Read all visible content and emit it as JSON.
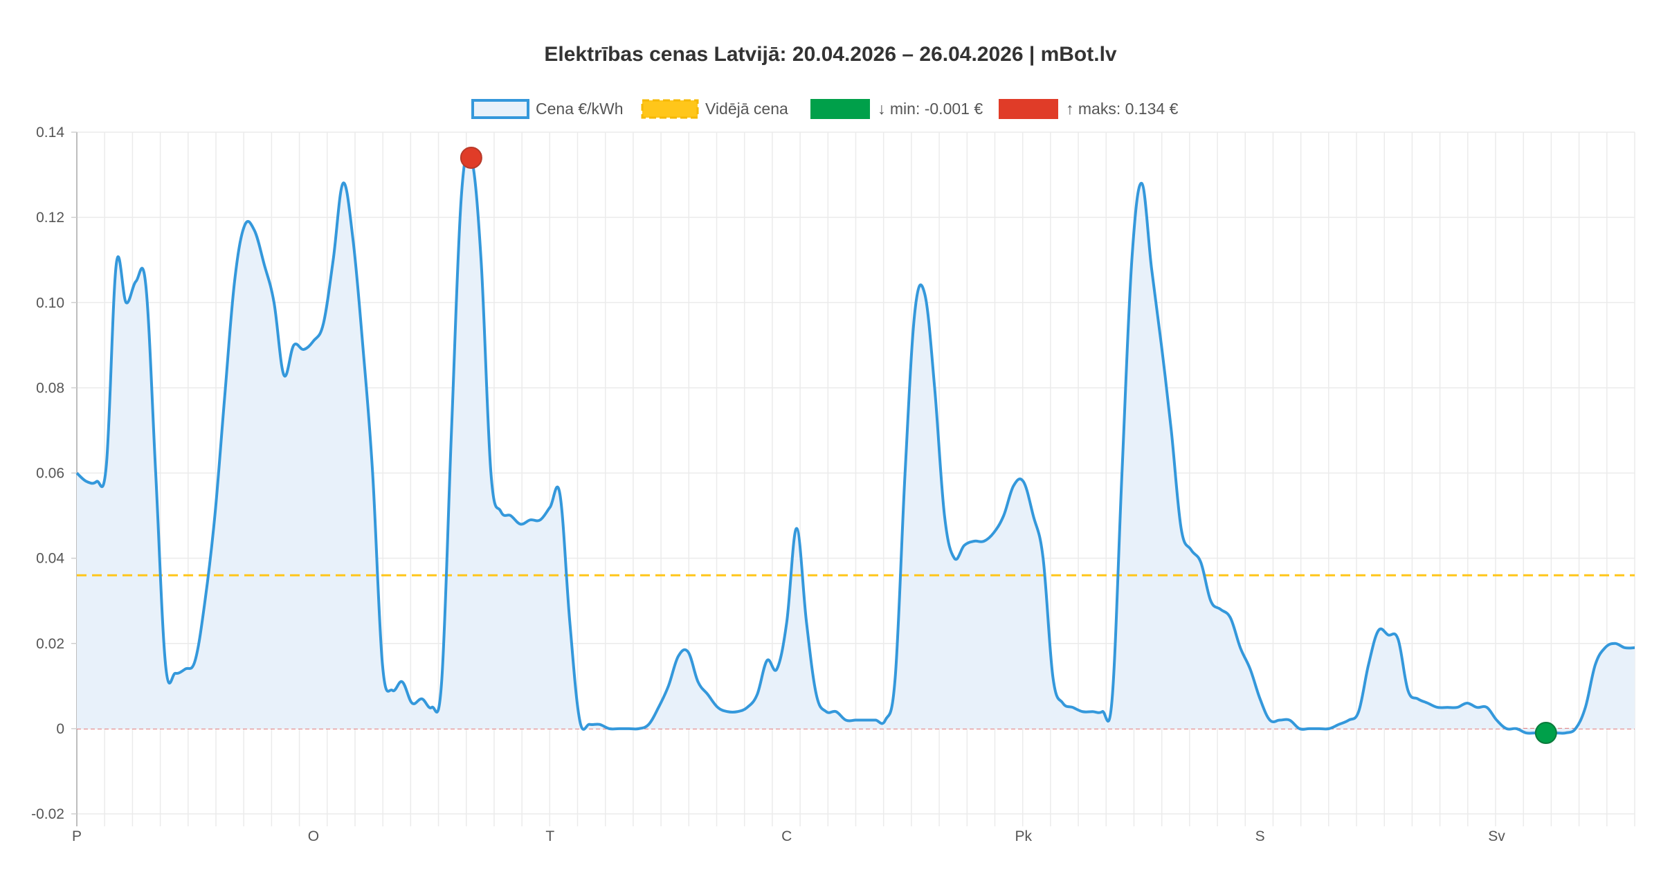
{
  "chart_data": {
    "type": "line",
    "title": "Elektrības cenas Latvijā: 20.04.2026 – 26.04.2026 | mBot.lv",
    "xlabel": "",
    "ylabel": "",
    "ylim": [
      -0.02,
      0.14
    ],
    "yticks": [
      -0.02,
      0,
      0.02,
      0.04,
      0.06,
      0.08,
      0.1,
      0.12,
      0.14
    ],
    "ytick_labels": [
      "-0.02",
      "0",
      "0.02",
      "0.04",
      "0.06",
      "0.08",
      "0.10",
      "0.12",
      "0.14"
    ],
    "x_day_labels": [
      "P",
      "O",
      "T",
      "C",
      "Pk",
      "S",
      "Sv"
    ],
    "grid": true,
    "legend_position": "top-center",
    "legend": [
      {
        "label": "Cena €/kWh",
        "kind": "series-area"
      },
      {
        "label": "Vidējā cena",
        "kind": "dashed-line"
      },
      {
        "label": "↓ min: -0.001 €",
        "kind": "min-marker"
      },
      {
        "label": "↑ maks: 0.134 €",
        "kind": "max-marker"
      }
    ],
    "series": [
      {
        "name": "Cena €/kWh",
        "color": "#3498db",
        "fill": "#e8f1fa",
        "values": [
          0.06,
          0.058,
          0.058,
          0.062,
          0.109,
          0.1,
          0.105,
          0.104,
          0.06,
          0.015,
          0.013,
          0.014,
          0.016,
          0.03,
          0.05,
          0.078,
          0.105,
          0.118,
          0.117,
          0.109,
          0.1,
          0.083,
          0.09,
          0.089,
          0.091,
          0.095,
          0.11,
          0.128,
          0.115,
          0.09,
          0.06,
          0.015,
          0.009,
          0.011,
          0.006,
          0.007,
          0.005,
          0.011,
          0.07,
          0.125,
          0.134,
          0.11,
          0.06,
          0.051,
          0.05,
          0.048,
          0.049,
          0.049,
          0.052,
          0.055,
          0.025,
          0.002,
          0.001,
          0.001,
          0.0,
          0.0,
          0.0,
          0.0,
          0.001,
          0.005,
          0.01,
          0.017,
          0.018,
          0.011,
          0.008,
          0.005,
          0.004,
          0.004,
          0.005,
          0.008,
          0.016,
          0.014,
          0.025,
          0.047,
          0.025,
          0.008,
          0.004,
          0.004,
          0.002,
          0.002,
          0.002,
          0.002,
          0.002,
          0.012,
          0.06,
          0.098,
          0.102,
          0.08,
          0.05,
          0.04,
          0.043,
          0.044,
          0.044,
          0.046,
          0.05,
          0.057,
          0.058,
          0.05,
          0.04,
          0.012,
          0.006,
          0.005,
          0.004,
          0.004,
          0.004,
          0.007,
          0.06,
          0.11,
          0.128,
          0.108,
          0.09,
          0.07,
          0.047,
          0.042,
          0.039,
          0.03,
          0.028,
          0.026,
          0.019,
          0.014,
          0.007,
          0.002,
          0.002,
          0.002,
          0.0,
          0.0,
          0.0,
          0.0,
          0.001,
          0.002,
          0.004,
          0.015,
          0.023,
          0.022,
          0.021,
          0.009,
          0.007,
          0.006,
          0.005,
          0.005,
          0.005,
          0.006,
          0.005,
          0.005,
          0.002,
          0.0,
          0.0,
          -0.001,
          -0.001,
          -0.001,
          -0.001,
          -0.001,
          0.0,
          0.005,
          0.015,
          0.019,
          0.02,
          0.019,
          0.019
        ]
      }
    ],
    "average": {
      "label": "Vidējā cena",
      "value": 0.036,
      "color": "#ffc61a"
    },
    "min_point": {
      "label": "↓ min: -0.001 €",
      "value": -0.001,
      "color": "#00a04a"
    },
    "max_point": {
      "label": "↑ maks: 0.134 €",
      "value": 0.134,
      "color": "#e03c28"
    },
    "zero_line_color": "#e07a7a"
  }
}
